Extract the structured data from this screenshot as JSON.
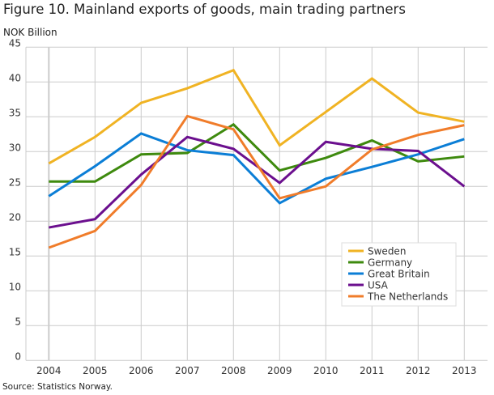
{
  "chart_data": {
    "type": "line",
    "title": "Figure 10. Mainland exports of goods, main trading partners",
    "ylabel": "NOK Billion",
    "source": "Source: Statistics Norway.",
    "x": [
      "2004",
      "2005",
      "2006",
      "2007",
      "2008",
      "2009",
      "2010",
      "2011",
      "2012",
      "2013"
    ],
    "ylim": [
      0,
      45
    ],
    "yticks": [
      0,
      5,
      10,
      15,
      20,
      25,
      30,
      35,
      40,
      45
    ],
    "grid": true,
    "legend_position": "bottom-right",
    "series": [
      {
        "name": "Sweden",
        "color": "#f0b323",
        "values": [
          28.3,
          32.1,
          37.0,
          39.1,
          41.7,
          30.9,
          35.7,
          40.5,
          35.6,
          34.3
        ]
      },
      {
        "name": "Germany",
        "color": "#3e8a0e",
        "values": [
          25.7,
          25.7,
          29.6,
          29.8,
          33.9,
          27.3,
          29.1,
          31.6,
          28.6,
          29.3
        ]
      },
      {
        "name": "Great Britain",
        "color": "#0b7ed6",
        "values": [
          23.6,
          27.9,
          32.6,
          30.2,
          29.5,
          22.6,
          26.1,
          27.8,
          29.6,
          31.8
        ]
      },
      {
        "name": "USA",
        "color": "#6b0f8e",
        "values": [
          19.1,
          20.3,
          26.7,
          32.1,
          30.4,
          25.5,
          31.4,
          30.4,
          30.1,
          25.0
        ]
      },
      {
        "name": "The Netherlands",
        "color": "#f07c2a",
        "values": [
          16.2,
          18.6,
          25.2,
          35.1,
          33.2,
          23.3,
          25.0,
          30.3,
          32.4,
          33.8
        ]
      }
    ]
  }
}
